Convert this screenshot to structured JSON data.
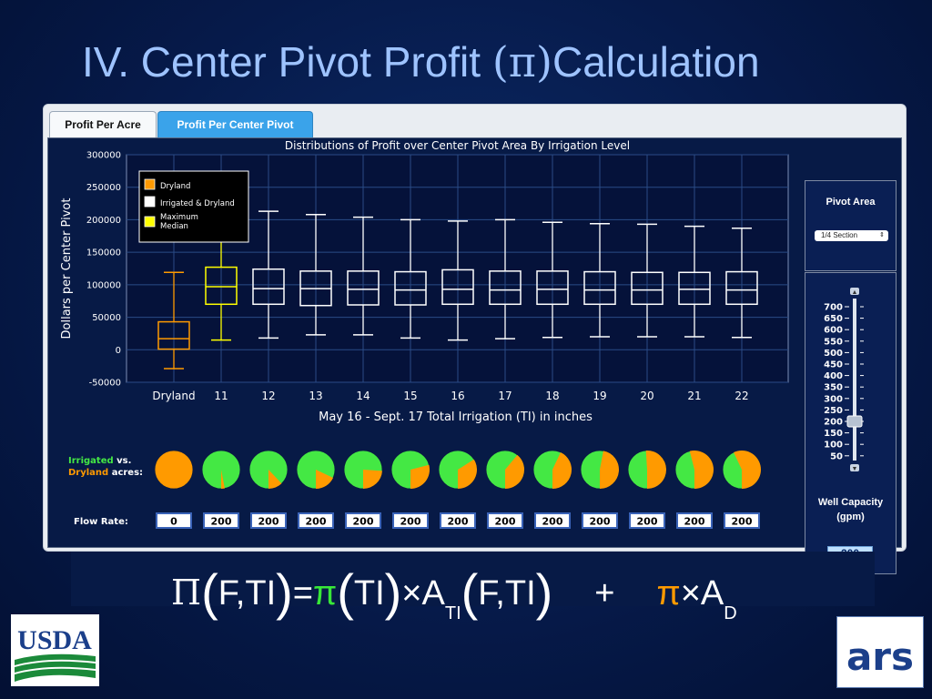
{
  "slide": {
    "title_prefix": "IV. Center Pivot Profit ",
    "title_pi": "(π)",
    "title_suffix": "Calculation"
  },
  "tabs": [
    {
      "label": "Profit Per Acre",
      "active": false
    },
    {
      "label": "Profit Per Center Pivot",
      "active": true
    }
  ],
  "side_panel": {
    "pivot_area_label": "Pivot Area",
    "pivot_area_value": "1/4 Section",
    "well_capacity_label_1": "Well Capacity",
    "well_capacity_label_2": "(gpm)",
    "well_capacity_value": "200",
    "slider_ticks": [
      "700",
      "650",
      "600",
      "550",
      "500",
      "450",
      "400",
      "350",
      "300",
      "250",
      "200",
      "150",
      "100",
      "50"
    ],
    "slider_value": 200
  },
  "pies": {
    "label_irrigated": "Irrigated",
    "label_vs": " vs.",
    "label_dryland": "Dryland",
    "label_acres": " acres:",
    "irrigated_color": "#44e844",
    "dryland_color": "#ff9a00"
  },
  "flow": {
    "label": "Flow Rate:",
    "values": [
      "0",
      "200",
      "200",
      "200",
      "200",
      "200",
      "200",
      "200",
      "200",
      "200",
      "200",
      "200",
      "200"
    ]
  },
  "formula": {
    "Pi": "Π",
    "F_TI": "F,TI",
    "eq": "=",
    "pi": "π",
    "TI": "TI",
    "times": "×",
    "A": "A",
    "sub_TI": "TI",
    "plus": "+",
    "sub_D": "D"
  },
  "logos": {
    "usda": "USDA",
    "ars": "ars"
  },
  "chart_data": {
    "type": "box",
    "title": "Distributions of Profit over Center Pivot Area By Irrigation Level",
    "xlabel": "May 16 - Sept. 17 Total Irrigation (TI) in inches",
    "ylabel": "Dollars per Center Pivot",
    "ylim": [
      -50000,
      300000
    ],
    "yticks": [
      "300000",
      "250000",
      "200000",
      "150000",
      "100000",
      "50000",
      "0",
      "-50000"
    ],
    "yticks_values": [
      300000,
      250000,
      200000,
      150000,
      100000,
      50000,
      0,
      -50000
    ],
    "grid": true,
    "legend_position": "top-left",
    "legend": [
      {
        "label": "Dryland",
        "color": "#ff9a00"
      },
      {
        "label": "Irrigated & Dryland",
        "color": "#ffffff"
      },
      {
        "label": "Maximum Median",
        "color": "#ffff00"
      }
    ],
    "categories": [
      "Dryland",
      "11",
      "12",
      "13",
      "14",
      "15",
      "16",
      "17",
      "18",
      "19",
      "20",
      "21",
      "22"
    ],
    "boxes": [
      {
        "min": -29000,
        "q1": 1000,
        "median": 17000,
        "q3": 43000,
        "max": 119000,
        "series": "Dryland"
      },
      {
        "min": 15000,
        "q1": 70000,
        "median": 97000,
        "q3": 127000,
        "max": 180000,
        "series": "Maximum Median"
      },
      {
        "min": 18000,
        "q1": 70000,
        "median": 94000,
        "q3": 124000,
        "max": 213000,
        "series": "Irrigated & Dryland"
      },
      {
        "min": 23000,
        "q1": 68000,
        "median": 94000,
        "q3": 121000,
        "max": 208000,
        "series": "Irrigated & Dryland"
      },
      {
        "min": 23000,
        "q1": 69000,
        "median": 93000,
        "q3": 121000,
        "max": 204000,
        "series": "Irrigated & Dryland"
      },
      {
        "min": 18000,
        "q1": 69000,
        "median": 92000,
        "q3": 120000,
        "max": 200000,
        "series": "Irrigated & Dryland"
      },
      {
        "min": 15000,
        "q1": 70000,
        "median": 93000,
        "q3": 123000,
        "max": 198000,
        "series": "Irrigated & Dryland"
      },
      {
        "min": 17000,
        "q1": 70000,
        "median": 92000,
        "q3": 121000,
        "max": 200000,
        "series": "Irrigated & Dryland"
      },
      {
        "min": 19000,
        "q1": 70000,
        "median": 93000,
        "q3": 121000,
        "max": 196000,
        "series": "Irrigated & Dryland"
      },
      {
        "min": 20000,
        "q1": 70000,
        "median": 92000,
        "q3": 120000,
        "max": 194000,
        "series": "Irrigated & Dryland"
      },
      {
        "min": 20000,
        "q1": 70000,
        "median": 92000,
        "q3": 119000,
        "max": 193000,
        "series": "Irrigated & Dryland"
      },
      {
        "min": 20000,
        "q1": 70000,
        "median": 93000,
        "q3": 119000,
        "max": 190000,
        "series": "Irrigated & Dryland"
      },
      {
        "min": 19000,
        "q1": 70000,
        "median": 92000,
        "q3": 120000,
        "max": 187000,
        "series": "Irrigated & Dryland"
      }
    ],
    "pie_irrigated_fraction": [
      0.0,
      0.97,
      0.88,
      0.82,
      0.76,
      0.71,
      0.66,
      0.61,
      0.57,
      0.53,
      0.49,
      0.46,
      0.43
    ]
  }
}
